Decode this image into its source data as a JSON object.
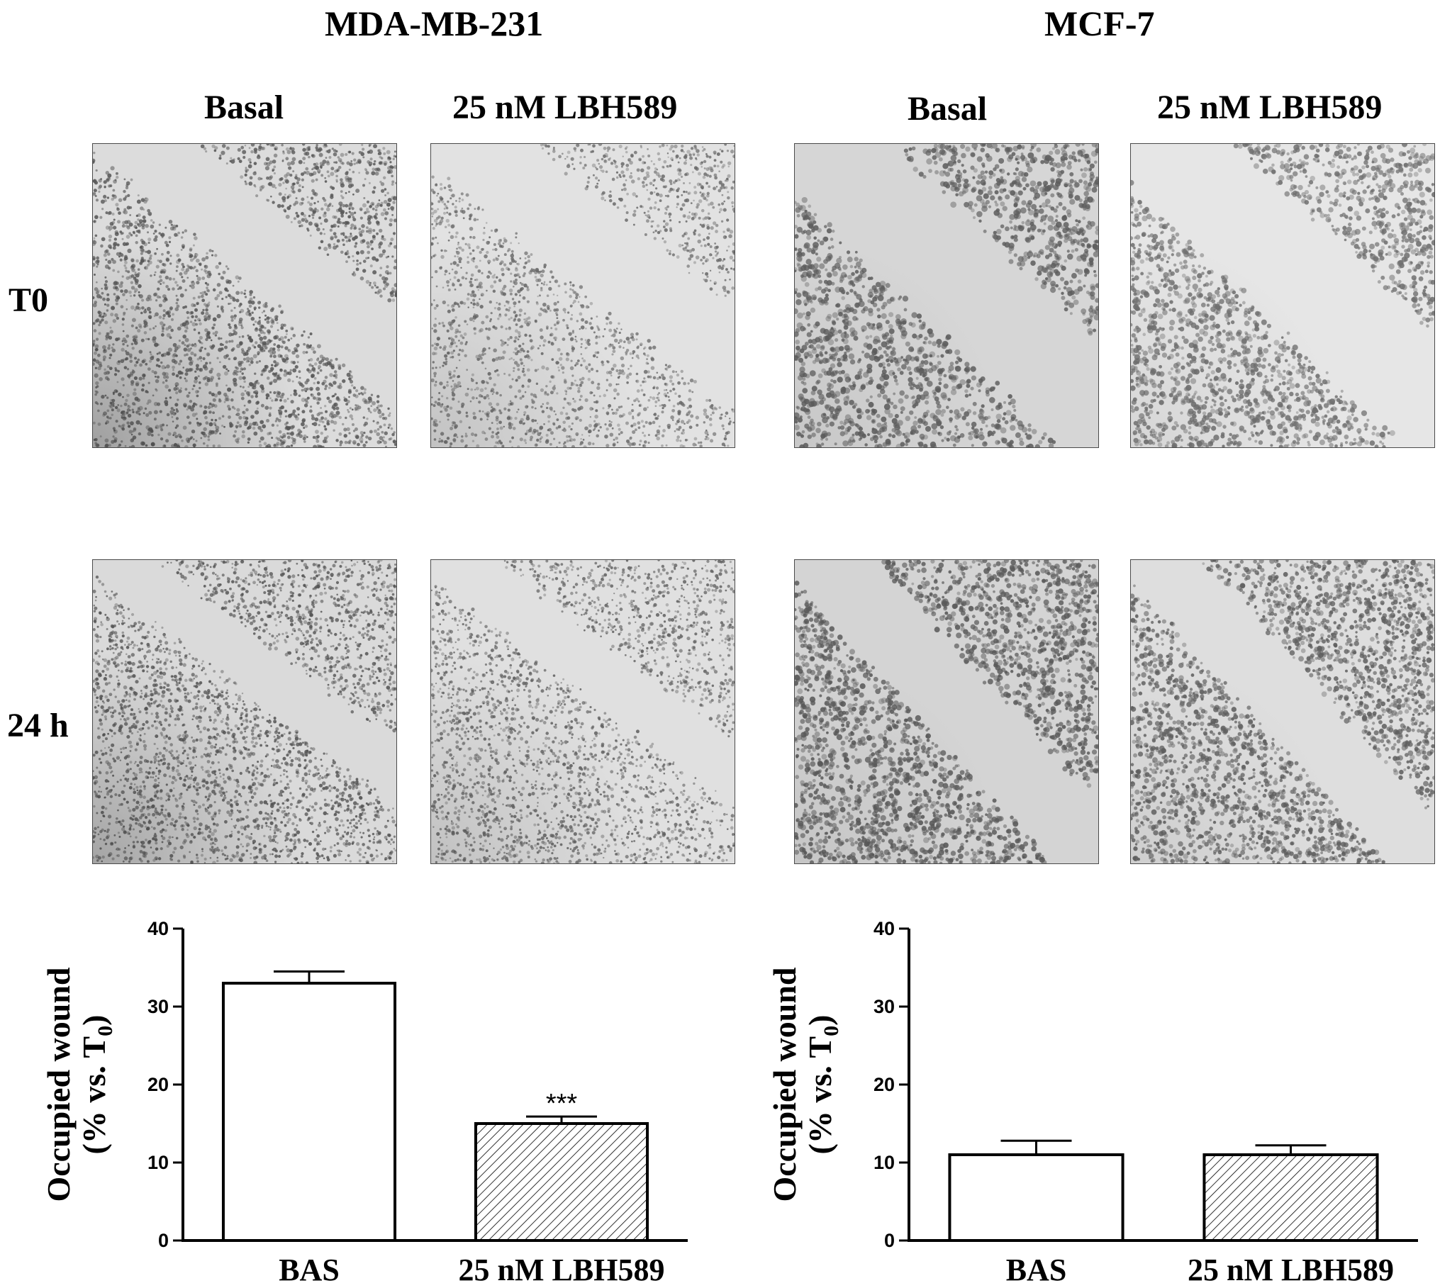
{
  "cell_lines": [
    "MDA-MB-231",
    "MCF-7"
  ],
  "conditions": [
    "Basal",
    "25 nM LBH589",
    "Basal",
    "25 nM LBH589"
  ],
  "timepoints": [
    "T0",
    "24 h"
  ],
  "panels": [
    {
      "cell_line": "MDA-MB-231",
      "condition": "Basal",
      "time": "T0"
    },
    {
      "cell_line": "MDA-MB-231",
      "condition": "25 nM LBH589",
      "time": "T0"
    },
    {
      "cell_line": "MCF-7",
      "condition": "Basal",
      "time": "T0"
    },
    {
      "cell_line": "MCF-7",
      "condition": "25 nM LBH589",
      "time": "T0"
    },
    {
      "cell_line": "MDA-MB-231",
      "condition": "Basal",
      "time": "24 h"
    },
    {
      "cell_line": "MDA-MB-231",
      "condition": "25 nM LBH589",
      "time": "24 h"
    },
    {
      "cell_line": "MCF-7",
      "condition": "Basal",
      "time": "24 h"
    },
    {
      "cell_line": "MCF-7",
      "condition": "25 nM LBH589",
      "time": "24 h"
    }
  ],
  "chart_data": [
    {
      "type": "bar",
      "ylabel_line1": "Occupied wound",
      "ylabel_line2": "(% vs. T",
      "ylabel_sub": "0",
      "ylabel_close": ")",
      "categories": [
        "BAS",
        "25 nM LBH589"
      ],
      "values": [
        33,
        15
      ],
      "errors": [
        1.5,
        0.9
      ],
      "annotations": [
        "",
        "***"
      ],
      "ylim": [
        0,
        40
      ],
      "yticks": [
        "0",
        "10",
        "20",
        "30",
        "40"
      ]
    },
    {
      "type": "bar",
      "ylabel_line1": "Occupied wound",
      "ylabel_line2": "(% vs. T",
      "ylabel_sub": "0",
      "ylabel_close": ")",
      "categories": [
        "BAS",
        "25 nM LBH589"
      ],
      "values": [
        11,
        11
      ],
      "errors": [
        1.8,
        1.2
      ],
      "annotations": [
        "",
        ""
      ],
      "ylim": [
        0,
        40
      ],
      "yticks": [
        "0",
        "10",
        "20",
        "30",
        "40"
      ]
    }
  ]
}
